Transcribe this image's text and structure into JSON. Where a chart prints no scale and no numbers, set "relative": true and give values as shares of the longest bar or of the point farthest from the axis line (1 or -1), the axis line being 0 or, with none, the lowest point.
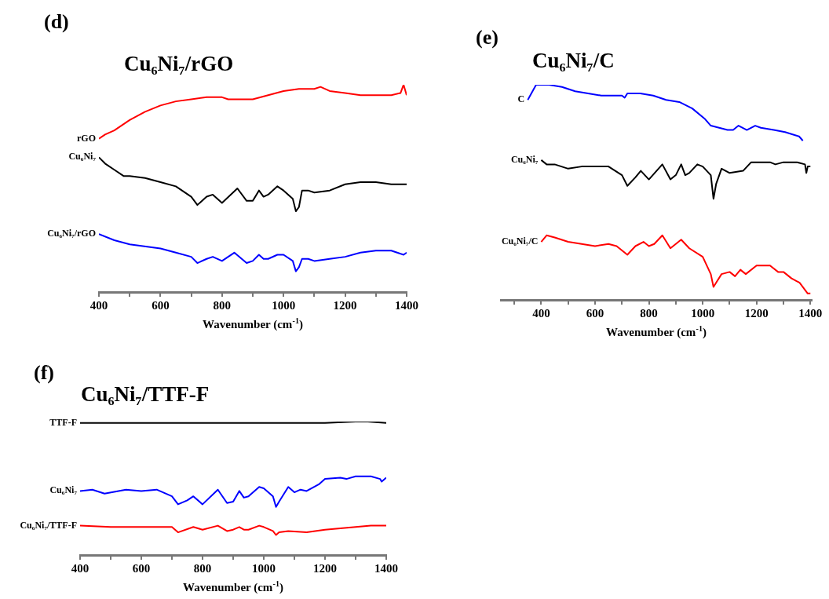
{
  "chart_data": [
    {
      "type": "line",
      "title": "Cu₆Ni₇/rGO",
      "xlabel": "Wavenumber (cm$^{-1}$)",
      "annotations": [
        "(d)"
      ],
      "relative": true,
      "legend": false,
      "grid": false,
      "marker": "none",
      "xlim": [
        400,
        1400
      ],
      "xticks": [
        400,
        {
          "value": 500,
          "label": null
        },
        600,
        {
          "value": 700,
          "label": null
        },
        800,
        {
          "value": 900,
          "label": null
        },
        1000,
        {
          "value": 1100,
          "label": null
        },
        1200,
        {
          "value": 1300,
          "label": null
        },
        1400
      ],
      "series": [
        {
          "name": "rGO",
          "color": "#ff0000",
          "x": [
            400,
            420,
            450,
            500,
            550,
            600,
            650,
            700,
            750,
            800,
            820,
            850,
            900,
            950,
            1000,
            1050,
            1100,
            1120,
            1150,
            1200,
            1250,
            1300,
            1350,
            1380,
            1390,
            1400
          ],
          "values": [
            0.74,
            0.76,
            0.78,
            0.83,
            0.87,
            0.9,
            0.92,
            0.93,
            0.94,
            0.94,
            0.93,
            0.93,
            0.93,
            0.95,
            0.97,
            0.98,
            0.98,
            0.99,
            0.97,
            0.96,
            0.95,
            0.95,
            0.95,
            0.96,
            1,
            0.95
          ]
        },
        {
          "name": "Cu₆Ni₇",
          "color": "#000000",
          "x": [
            400,
            420,
            450,
            480,
            500,
            550,
            600,
            650,
            700,
            720,
            750,
            770,
            800,
            850,
            880,
            900,
            920,
            935,
            950,
            980,
            1000,
            1030,
            1040,
            1050,
            1060,
            1080,
            1100,
            1150,
            1200,
            1250,
            1300,
            1350,
            1400
          ],
          "values": [
            0.65,
            0.62,
            0.59,
            0.56,
            0.56,
            0.55,
            0.53,
            0.51,
            0.46,
            0.42,
            0.46,
            0.47,
            0.43,
            0.5,
            0.44,
            0.44,
            0.49,
            0.46,
            0.47,
            0.51,
            0.49,
            0.45,
            0.39,
            0.41,
            0.49,
            0.49,
            0.48,
            0.49,
            0.52,
            0.53,
            0.53,
            0.52,
            0.52
          ]
        },
        {
          "name": "Cu₆Ni₇/rGO",
          "color": "#0000ff",
          "x": [
            400,
            450,
            500,
            600,
            650,
            700,
            720,
            750,
            770,
            800,
            840,
            880,
            900,
            920,
            935,
            950,
            980,
            1000,
            1030,
            1040,
            1050,
            1060,
            1080,
            1100,
            1150,
            1200,
            1250,
            1300,
            1350,
            1390,
            1400
          ],
          "values": [
            0.28,
            0.25,
            0.23,
            0.21,
            0.19,
            0.17,
            0.14,
            0.16,
            0.17,
            0.15,
            0.19,
            0.14,
            0.15,
            0.18,
            0.16,
            0.16,
            0.18,
            0.18,
            0.15,
            0.1,
            0.12,
            0.16,
            0.16,
            0.15,
            0.16,
            0.17,
            0.19,
            0.2,
            0.2,
            0.18,
            0.19
          ]
        }
      ]
    },
    {
      "type": "line",
      "title": "Cu₆Ni₇/C",
      "xlabel": "Wavenumber (cm$^{-1}$)",
      "annotations": [
        "(e)"
      ],
      "relative": true,
      "legend": false,
      "grid": false,
      "marker": "none",
      "xlim": [
        250,
        1405
      ],
      "xticks": [
        {
          "value": 300,
          "label": null
        },
        400,
        {
          "value": 500,
          "label": null
        },
        600,
        {
          "value": 700,
          "label": null
        },
        800,
        {
          "value": 900,
          "label": null
        },
        1000,
        {
          "value": 1100,
          "label": null
        },
        1200,
        {
          "value": 1300,
          "label": null
        },
        1400
      ],
      "series": [
        {
          "name": "C",
          "color": "#0000ff",
          "x": [
            350,
            381,
            429,
            477,
            526,
            574,
            623,
            671,
            700,
            710,
            720,
            768,
            816,
            864,
            913,
            961,
            1009,
            1030,
            1061,
            1092,
            1113,
            1133,
            1164,
            1195,
            1216,
            1264,
            1306,
            1358,
            1372
          ],
          "values": [
            0.93,
            1,
            1,
            0.99,
            0.97,
            0.96,
            0.95,
            0.95,
            0.95,
            0.94,
            0.96,
            0.96,
            0.95,
            0.93,
            0.92,
            0.89,
            0.84,
            0.81,
            0.8,
            0.79,
            0.79,
            0.81,
            0.79,
            0.81,
            0.8,
            0.79,
            0.78,
            0.76,
            0.74
          ]
        },
        {
          "name": "Cu₆Ni₇",
          "color": "#000000",
          "x": [
            400,
            420,
            450,
            500,
            550,
            600,
            650,
            700,
            720,
            750,
            770,
            800,
            850,
            880,
            900,
            920,
            935,
            950,
            980,
            1000,
            1030,
            1040,
            1050,
            1070,
            1100,
            1150,
            1180,
            1200,
            1250,
            1270,
            1300,
            1350,
            1380,
            1385,
            1390,
            1400
          ],
          "values": [
            0.65,
            0.63,
            0.63,
            0.61,
            0.62,
            0.62,
            0.62,
            0.58,
            0.53,
            0.57,
            0.6,
            0.56,
            0.63,
            0.56,
            0.58,
            0.63,
            0.58,
            0.59,
            0.63,
            0.62,
            0.58,
            0.47,
            0.54,
            0.61,
            0.59,
            0.6,
            0.64,
            0.64,
            0.64,
            0.63,
            0.64,
            0.64,
            0.63,
            0.59,
            0.62,
            0.62
          ]
        },
        {
          "name": "Cu₆Ni₇/C",
          "color": "#ff0000",
          "x": [
            400,
            420,
            450,
            500,
            550,
            600,
            650,
            680,
            700,
            720,
            750,
            780,
            800,
            820,
            850,
            880,
            900,
            920,
            950,
            1000,
            1030,
            1040,
            1050,
            1070,
            1100,
            1120,
            1140,
            1160,
            1200,
            1230,
            1250,
            1280,
            1300,
            1330,
            1360,
            1390,
            1400
          ],
          "values": [
            0.27,
            0.3,
            0.29,
            0.27,
            0.26,
            0.25,
            0.26,
            0.25,
            0.23,
            0.21,
            0.25,
            0.27,
            0.25,
            0.26,
            0.3,
            0.24,
            0.26,
            0.28,
            0.24,
            0.2,
            0.12,
            0.06,
            0.08,
            0.12,
            0.13,
            0.11,
            0.14,
            0.12,
            0.16,
            0.16,
            0.16,
            0.13,
            0.13,
            0.1,
            0.08,
            0.03,
            0.03
          ]
        }
      ]
    },
    {
      "type": "line",
      "title": "Cu₆Ni₇/TTF-F",
      "xlabel": "Wavenumber (cm$^{-1}$)",
      "annotations": [
        "(f)"
      ],
      "relative": true,
      "legend": false,
      "grid": false,
      "marker": "none",
      "xlim": [
        400,
        1400
      ],
      "xticks": [
        400,
        {
          "value": 500,
          "label": null
        },
        600,
        {
          "value": 700,
          "label": null
        },
        800,
        {
          "value": 900,
          "label": null
        },
        1000,
        {
          "value": 1100,
          "label": null
        },
        1200,
        {
          "value": 1300,
          "label": null
        },
        1400
      ],
      "series": [
        {
          "name": "TTF-F",
          "color": "#000000",
          "x": [
            400,
            500,
            600,
            700,
            800,
            900,
            1000,
            1100,
            1200,
            1300,
            1340,
            1400
          ],
          "values": [
            0.99,
            0.99,
            0.99,
            0.99,
            0.99,
            0.99,
            0.99,
            0.99,
            0.99,
            1,
            1,
            0.99
          ]
        },
        {
          "name": "Cu₆Ni₇",
          "color": "#0000ff",
          "x": [
            400,
            440,
            480,
            550,
            600,
            650,
            700,
            720,
            750,
            770,
            800,
            850,
            880,
            900,
            920,
            935,
            950,
            985,
            1000,
            1030,
            1040,
            1050,
            1080,
            1100,
            1120,
            1140,
            1180,
            1200,
            1250,
            1270,
            1300,
            1350,
            1380,
            1385,
            1400
          ],
          "values": [
            0.48,
            0.49,
            0.46,
            0.49,
            0.48,
            0.49,
            0.44,
            0.38,
            0.41,
            0.44,
            0.38,
            0.49,
            0.39,
            0.4,
            0.48,
            0.43,
            0.44,
            0.51,
            0.5,
            0.44,
            0.36,
            0.4,
            0.51,
            0.47,
            0.49,
            0.48,
            0.53,
            0.57,
            0.58,
            0.57,
            0.59,
            0.59,
            0.57,
            0.55,
            0.58
          ]
        },
        {
          "name": "Cu₆Ni₇/TTF-F",
          "color": "#ff0000",
          "x": [
            400,
            500,
            600,
            700,
            720,
            770,
            800,
            850,
            880,
            900,
            920,
            935,
            950,
            985,
            1000,
            1030,
            1040,
            1050,
            1080,
            1140,
            1200,
            1300,
            1350,
            1400
          ],
          "values": [
            0.22,
            0.21,
            0.21,
            0.21,
            0.17,
            0.21,
            0.19,
            0.22,
            0.18,
            0.19,
            0.21,
            0.19,
            0.19,
            0.22,
            0.21,
            0.18,
            0.15,
            0.17,
            0.18,
            0.17,
            0.19,
            0.21,
            0.22,
            0.22
          ]
        }
      ]
    }
  ]
}
